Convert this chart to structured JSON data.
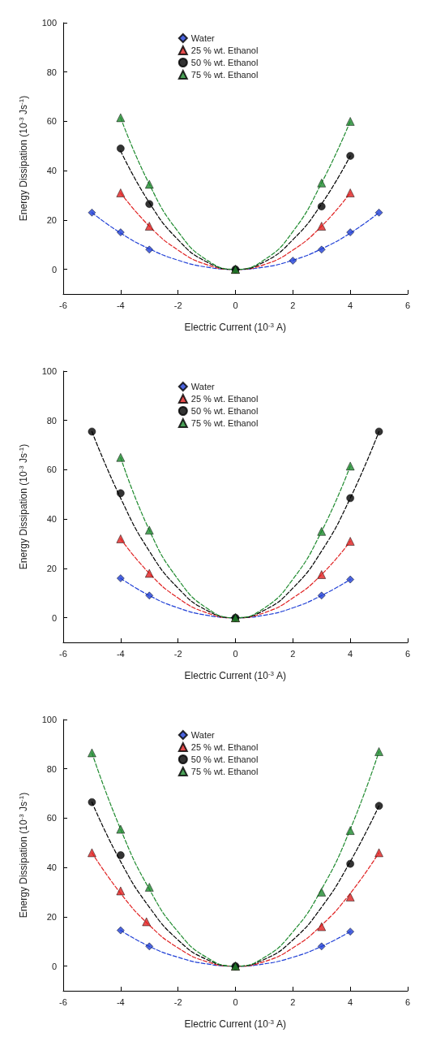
{
  "chart_data": [
    {
      "type": "scatter",
      "xlabel": "Electric Current (10$^{-3}$ A)",
      "ylabel": "Energy Dissipation (10$^{-3}$ Js$^{-1}$)",
      "xlim": [
        -6,
        6
      ],
      "xticks": [
        -6,
        -4,
        -2,
        0,
        2,
        4,
        6
      ],
      "ylim": [
        -10,
        100
      ],
      "yticks": [
        0,
        20,
        40,
        60,
        80,
        100
      ],
      "grid": false,
      "legend": "top",
      "series": [
        {
          "name": "Water",
          "color": "#1f3fd6",
          "marker": "diamond",
          "x": [
            -5,
            -4,
            -3,
            0,
            2,
            3,
            4,
            5
          ],
          "values": [
            23,
            15,
            8,
            0,
            3.5,
            8,
            15,
            23
          ]
        },
        {
          "name": "25 % wt. Ethanol",
          "color": "#e02020",
          "marker": "triangle",
          "x": [
            -4,
            -3,
            0,
            3,
            4
          ],
          "values": [
            31,
            17.5,
            0,
            17.5,
            31
          ]
        },
        {
          "name": "50 % wt. Ethanol",
          "color": "#000000",
          "marker": "circle",
          "x": [
            -4,
            -3,
            0,
            3,
            4
          ],
          "values": [
            49,
            26.5,
            0,
            25.5,
            46
          ]
        },
        {
          "name": "75 % wt. Ethanol",
          "color": "#1e8a2e",
          "marker": "triangle",
          "x": [
            -4,
            -3,
            0,
            3,
            4
          ],
          "values": [
            61.5,
            34.5,
            0,
            35,
            60
          ]
        },
        {
          "type": "line",
          "color": "#1f3fd6",
          "line_style": "dashed",
          "marker": "none",
          "x": [
            -5,
            -4,
            -3,
            -2,
            -1,
            0,
            1,
            2,
            3,
            4,
            5
          ],
          "values": [
            23,
            14.7,
            8.3,
            3.7,
            0.9,
            0,
            0.9,
            3.7,
            8.3,
            14.7,
            23
          ]
        },
        {
          "type": "line",
          "color": "#e02020",
          "line_style": "dashed",
          "marker": "none",
          "x": [
            -4,
            -3,
            -2,
            -1,
            0,
            1,
            2,
            3,
            4
          ],
          "values": [
            31,
            17.5,
            7.8,
            1.9,
            0,
            1.9,
            7.8,
            17.5,
            31
          ]
        },
        {
          "type": "line",
          "color": "#000000",
          "line_style": "dashed",
          "marker": "none",
          "x": [
            -4,
            -3,
            -2,
            -1,
            0,
            1,
            2,
            3,
            4
          ],
          "values": [
            48,
            27,
            12,
            3,
            0,
            3,
            12,
            26.5,
            46
          ]
        },
        {
          "type": "line",
          "color": "#1e8a2e",
          "line_style": "dashed",
          "marker": "none",
          "x": [
            -4,
            -3,
            -2,
            -1,
            0,
            1,
            2,
            3,
            4
          ],
          "values": [
            61.5,
            34.5,
            15.3,
            3.8,
            0,
            3.8,
            15.3,
            35,
            60
          ]
        }
      ]
    },
    {
      "type": "scatter",
      "xlabel": "Electric Current (10$^{-3}$ A)",
      "ylabel": "Energy Dissipation (10$^{-3}$ Js$^{-1}$)",
      "xlim": [
        -6,
        6
      ],
      "xticks": [
        -6,
        -4,
        -2,
        0,
        2,
        4,
        6
      ],
      "ylim": [
        -10,
        100
      ],
      "yticks": [
        0,
        20,
        40,
        60,
        80,
        100
      ],
      "grid": false,
      "legend": "top",
      "series": [
        {
          "name": "Water",
          "color": "#1f3fd6",
          "marker": "diamond",
          "x": [
            -4,
            -3,
            0,
            3,
            4
          ],
          "values": [
            16,
            9,
            0,
            9,
            15.5
          ]
        },
        {
          "name": "25 % wt. Ethanol",
          "color": "#e02020",
          "marker": "triangle",
          "x": [
            -4,
            -3,
            0,
            3,
            4
          ],
          "values": [
            32,
            18,
            0,
            17.5,
            31
          ]
        },
        {
          "name": "50 % wt. Ethanol",
          "color": "#000000",
          "marker": "circle",
          "x": [
            -5,
            -4,
            0,
            4,
            5
          ],
          "values": [
            75.5,
            50.5,
            0,
            48.5,
            75.5
          ]
        },
        {
          "name": "75 % wt. Ethanol",
          "color": "#1e8a2e",
          "marker": "triangle",
          "x": [
            -4,
            -3,
            0,
            3,
            4
          ],
          "values": [
            65,
            35.5,
            0,
            35,
            61.5
          ]
        },
        {
          "type": "line",
          "color": "#1f3fd6",
          "line_style": "dashed",
          "marker": "none",
          "x": [
            -4,
            -3,
            -2,
            -1,
            0,
            1,
            2,
            3,
            4
          ],
          "values": [
            16,
            9,
            4,
            1,
            0,
            1,
            4,
            9,
            15.5
          ]
        },
        {
          "type": "line",
          "color": "#e02020",
          "line_style": "dashed",
          "marker": "none",
          "x": [
            -4,
            -3,
            -2,
            -1,
            0,
            1,
            2,
            3,
            4
          ],
          "values": [
            32,
            18,
            8,
            2,
            0,
            2,
            8,
            17.5,
            31
          ]
        },
        {
          "type": "line",
          "color": "#000000",
          "line_style": "dashed",
          "marker": "none",
          "x": [
            -5,
            -4,
            -3,
            -2,
            -1,
            0,
            1,
            2,
            3,
            4,
            5
          ],
          "values": [
            75.5,
            48.5,
            27,
            12,
            3,
            0,
            3,
            12,
            27,
            48.5,
            75.5
          ]
        },
        {
          "type": "line",
          "color": "#1e8a2e",
          "line_style": "dashed",
          "marker": "none",
          "x": [
            -4,
            -3,
            -2,
            -1,
            0,
            1,
            2,
            3,
            4
          ],
          "values": [
            65,
            35.5,
            15.6,
            3.9,
            0,
            3.9,
            15.6,
            35,
            61.5
          ]
        }
      ]
    },
    {
      "type": "scatter",
      "xlabel": "Electric Current (10$^{-3}$ A)",
      "ylabel": "Energy Dissipation (10$^{-3}$ Js$^{-1}$)",
      "xlim": [
        -6,
        6
      ],
      "xticks": [
        -6,
        -4,
        -2,
        0,
        2,
        4,
        6
      ],
      "ylim": [
        -10,
        100
      ],
      "yticks": [
        0,
        20,
        40,
        60,
        80,
        100
      ],
      "grid": false,
      "legend": "top",
      "series": [
        {
          "name": "Water",
          "color": "#1f3fd6",
          "marker": "diamond",
          "x": [
            -4,
            -3,
            0,
            3,
            4
          ],
          "values": [
            14.5,
            8,
            0,
            8,
            14
          ]
        },
        {
          "name": "25 % wt. Ethanol",
          "color": "#e02020",
          "marker": "triangle",
          "x": [
            -5,
            -4,
            -3.1,
            0,
            3,
            4,
            5
          ],
          "values": [
            46,
            30.5,
            18,
            0,
            16,
            28,
            46
          ]
        },
        {
          "name": "50 % wt. Ethanol",
          "color": "#000000",
          "marker": "circle",
          "x": [
            -5,
            -4,
            0,
            4,
            5
          ],
          "values": [
            66.5,
            45,
            0,
            41.5,
            65
          ]
        },
        {
          "name": "75 % wt. Ethanol",
          "color": "#1e8a2e",
          "marker": "triangle",
          "x": [
            -5,
            -4,
            -3,
            0,
            3,
            4,
            5
          ],
          "values": [
            86.5,
            55.5,
            32,
            0,
            30,
            55,
            87
          ]
        },
        {
          "type": "line",
          "color": "#1f3fd6",
          "line_style": "dashed",
          "marker": "none",
          "x": [
            -4,
            -3,
            -2,
            -1,
            0,
            1,
            2,
            3,
            4
          ],
          "values": [
            14.5,
            8,
            3.6,
            0.9,
            0,
            0.9,
            3.6,
            8,
            14
          ]
        },
        {
          "type": "line",
          "color": "#e02020",
          "line_style": "dashed",
          "marker": "none",
          "x": [
            -5,
            -4,
            -3,
            -2,
            -1,
            0,
            1,
            2,
            3,
            4,
            5
          ],
          "values": [
            46,
            29.5,
            16.6,
            7.4,
            1.8,
            0,
            1.8,
            7.4,
            16.6,
            29.5,
            46
          ]
        },
        {
          "type": "line",
          "color": "#000000",
          "line_style": "dashed",
          "marker": "none",
          "x": [
            -5,
            -4,
            -3,
            -2,
            -1,
            0,
            1,
            2,
            3,
            4,
            5
          ],
          "values": [
            66.5,
            42.4,
            23.9,
            10.6,
            2.7,
            0,
            2.7,
            10.6,
            23.9,
            42.4,
            65
          ]
        },
        {
          "type": "line",
          "color": "#1e8a2e",
          "line_style": "dashed",
          "marker": "none",
          "x": [
            -5,
            -4,
            -3,
            -2,
            -1,
            0,
            1,
            2,
            3,
            4,
            5
          ],
          "values": [
            86.5,
            55.5,
            31.2,
            13.9,
            3.5,
            0,
            3.5,
            13.9,
            31.2,
            55.5,
            87
          ]
        }
      ]
    }
  ]
}
